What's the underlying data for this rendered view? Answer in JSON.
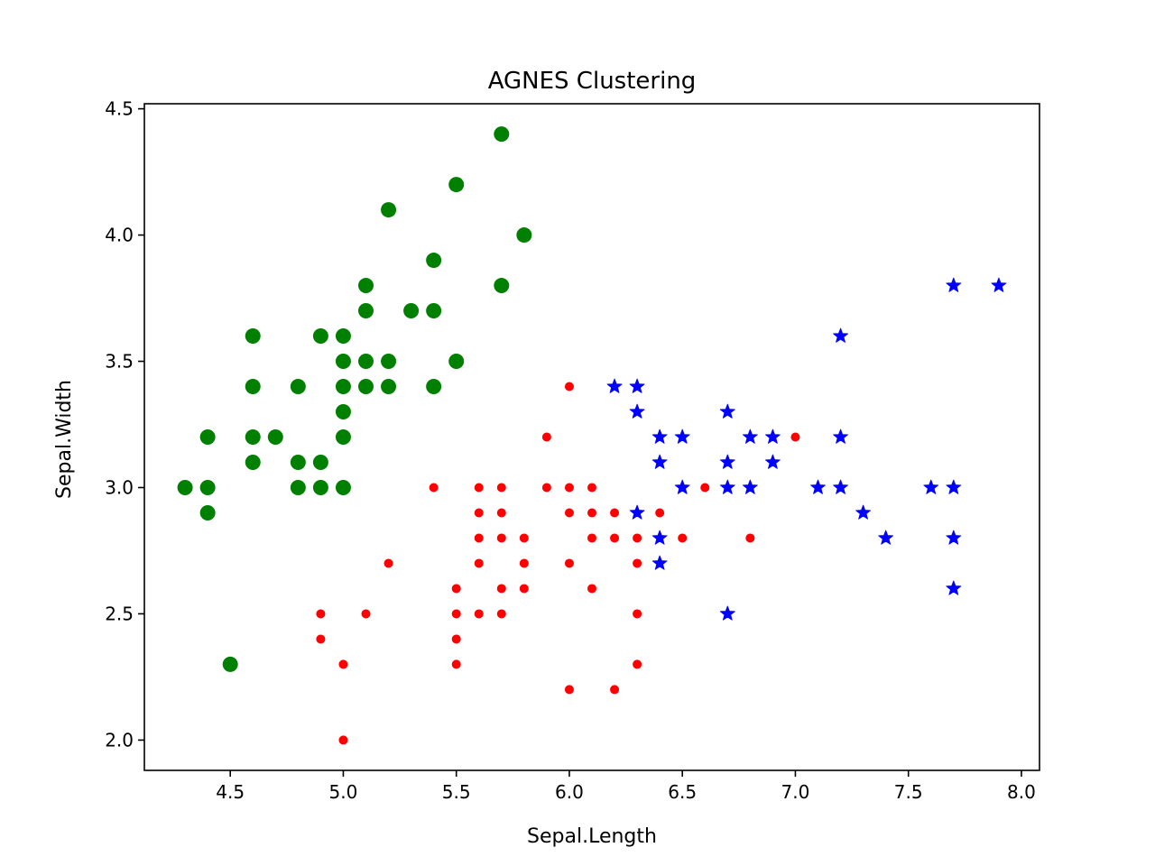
{
  "chart_data": {
    "type": "scatter",
    "title": "AGNES Clustering",
    "xlabel": "Sepal.Length",
    "ylabel": "Sepal.Width",
    "xlim": [
      4.12,
      8.08
    ],
    "ylim": [
      1.88,
      4.52
    ],
    "xticks": [
      4.5,
      5.0,
      5.5,
      6.0,
      6.5,
      7.0,
      7.5,
      8.0
    ],
    "yticks": [
      2.0,
      2.5,
      3.0,
      3.5,
      4.0,
      4.5
    ],
    "xtick_labels": [
      "4.5",
      "5.0",
      "5.5",
      "6.0",
      "6.5",
      "7.0",
      "7.5",
      "8.0"
    ],
    "ytick_labels": [
      "2.0",
      "2.5",
      "3.0",
      "3.5",
      "4.0",
      "4.5"
    ],
    "grid": false,
    "series": [
      {
        "color": "#008000",
        "marker": "circle-large",
        "x": [
          5.7,
          5.5,
          5.2,
          5.8,
          5.4,
          5.7,
          5.1,
          5.1,
          5.3,
          5.4,
          4.6,
          4.9,
          5.0,
          5.0,
          5.1,
          5.2,
          5.5,
          4.6,
          4.8,
          5.0,
          5.1,
          5.2,
          5.4,
          5.0,
          4.4,
          4.6,
          4.7,
          5.0,
          4.6,
          4.8,
          4.9,
          4.3,
          4.4,
          4.8,
          4.9,
          5.0,
          4.4,
          4.5
        ],
        "y": [
          4.4,
          4.2,
          4.1,
          4.0,
          3.9,
          3.8,
          3.8,
          3.7,
          3.7,
          3.7,
          3.6,
          3.6,
          3.6,
          3.5,
          3.5,
          3.5,
          3.5,
          3.4,
          3.4,
          3.4,
          3.4,
          3.4,
          3.4,
          3.3,
          3.2,
          3.2,
          3.2,
          3.2,
          3.1,
          3.1,
          3.1,
          3.0,
          3.0,
          3.0,
          3.0,
          3.0,
          2.9,
          2.3
        ]
      },
      {
        "color": "#ff0000",
        "marker": "circle-small",
        "x": [
          6.0,
          5.9,
          7.0,
          5.4,
          5.6,
          5.7,
          5.9,
          6.0,
          6.1,
          6.6,
          5.6,
          5.7,
          6.0,
          6.1,
          6.2,
          6.4,
          5.6,
          5.7,
          5.8,
          6.1,
          6.2,
          6.3,
          6.5,
          6.8,
          5.2,
          5.6,
          5.8,
          6.0,
          6.3,
          5.5,
          5.7,
          5.8,
          6.1,
          4.9,
          5.1,
          5.5,
          5.6,
          5.7,
          6.3,
          4.9,
          5.5,
          5.0,
          5.5,
          6.3,
          6.0,
          6.2,
          5.0
        ],
        "y": [
          3.4,
          3.2,
          3.2,
          3.0,
          3.0,
          3.0,
          3.0,
          3.0,
          3.0,
          3.0,
          2.9,
          2.9,
          2.9,
          2.9,
          2.9,
          2.9,
          2.8,
          2.8,
          2.8,
          2.8,
          2.8,
          2.8,
          2.8,
          2.8,
          2.7,
          2.7,
          2.7,
          2.7,
          2.7,
          2.6,
          2.6,
          2.6,
          2.6,
          2.5,
          2.5,
          2.5,
          2.5,
          2.5,
          2.5,
          2.4,
          2.4,
          2.3,
          2.3,
          2.3,
          2.2,
          2.2,
          2.0
        ]
      },
      {
        "color": "#0000ff",
        "marker": "star",
        "x": [
          7.7,
          7.9,
          7.2,
          6.2,
          6.3,
          6.3,
          6.7,
          6.4,
          6.5,
          6.8,
          6.9,
          7.2,
          6.4,
          6.7,
          6.9,
          6.5,
          6.7,
          6.8,
          7.1,
          7.2,
          7.6,
          7.7,
          6.3,
          7.3,
          6.4,
          7.4,
          7.7,
          6.4,
          6.7,
          7.7
        ],
        "y": [
          3.8,
          3.8,
          3.6,
          3.4,
          3.4,
          3.3,
          3.3,
          3.2,
          3.2,
          3.2,
          3.2,
          3.2,
          3.1,
          3.1,
          3.1,
          3.0,
          3.0,
          3.0,
          3.0,
          3.0,
          3.0,
          3.0,
          2.9,
          2.9,
          2.8,
          2.8,
          2.8,
          2.7,
          2.5,
          2.6
        ]
      }
    ]
  }
}
